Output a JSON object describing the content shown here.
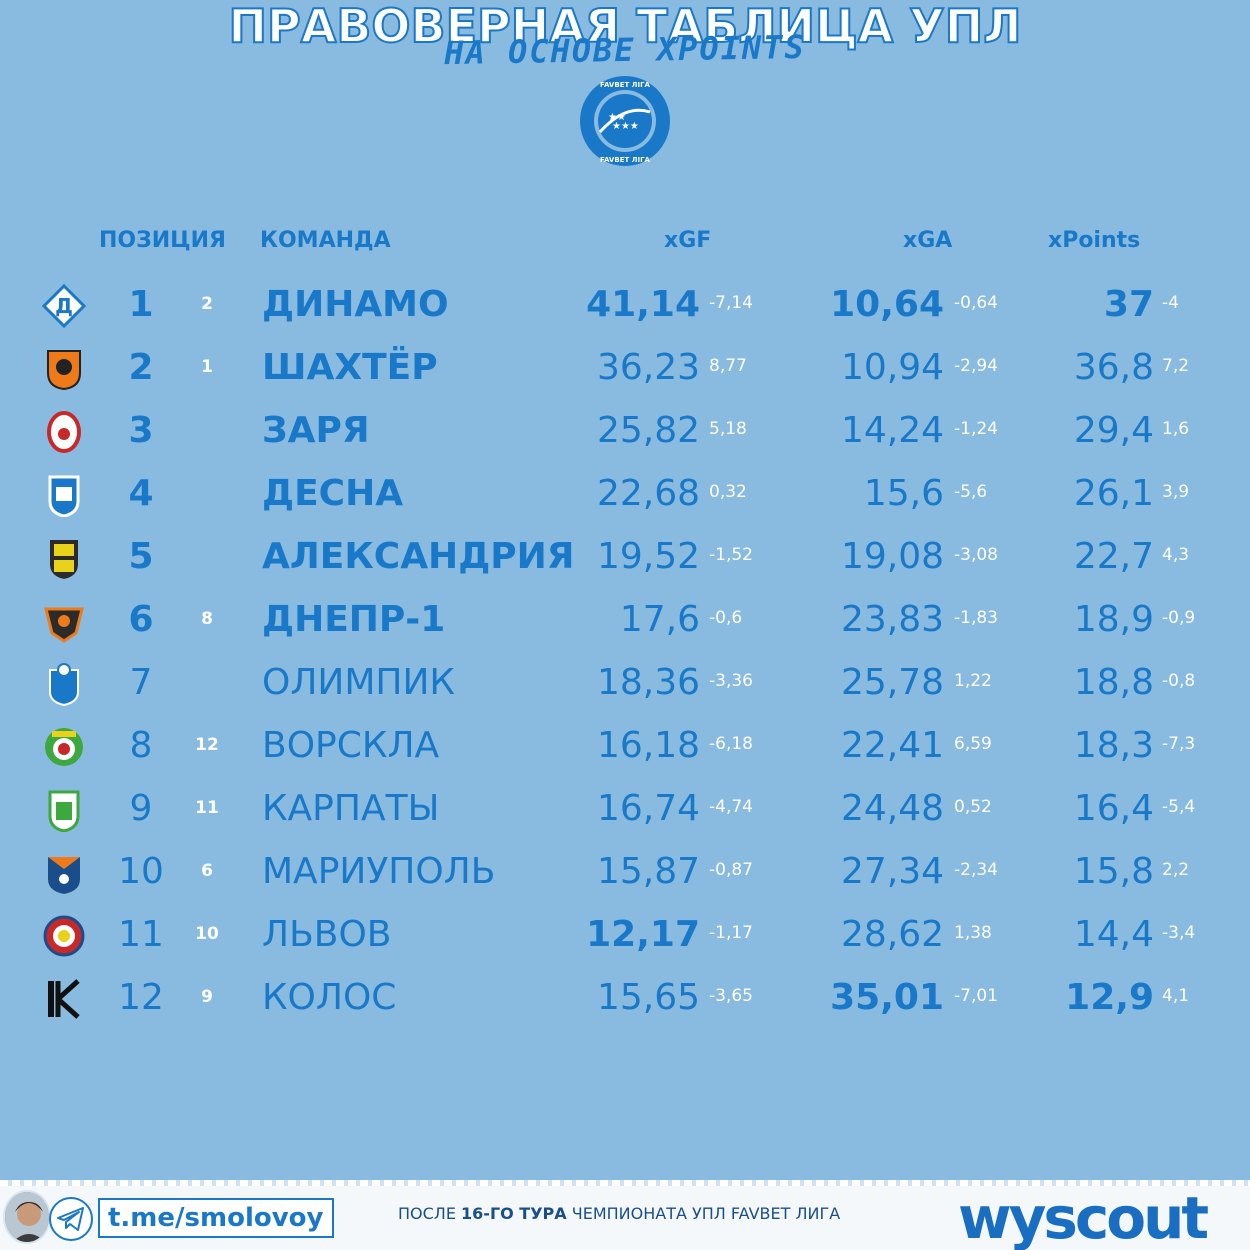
{
  "header": {
    "title": "ПРАВОВЕРНАЯ ТАБЛИЦА УПЛ",
    "subtitle": "НА ОСНОВЕ XPOINTS",
    "logo_text": "FAVBET ЛІГА"
  },
  "columns": {
    "position": "ПОЗИЦИЯ",
    "team": "КОМАНДА",
    "xgf": "xGF",
    "xga": "xGA",
    "xpoints": "xPoints"
  },
  "colors": {
    "background": "#88bbdf",
    "accent": "#1a78c8",
    "delta": "#ffffff"
  },
  "rows": [
    {
      "pos": "1",
      "prev": "2",
      "team": "ДИНАМО",
      "xgf": "41,14",
      "xgf_d": "-7,14",
      "xga": "10,64",
      "xga_d": "-0,64",
      "xp": "37",
      "xp_d": "-4",
      "badge": "dynamo-badge-icon"
    },
    {
      "pos": "2",
      "prev": "1",
      "team": "ШАХТЁР",
      "xgf": "36,23",
      "xgf_d": "8,77",
      "xga": "10,94",
      "xga_d": "-2,94",
      "xp": "36,8",
      "xp_d": "7,2",
      "badge": "shakhtar-badge-icon"
    },
    {
      "pos": "3",
      "prev": "",
      "team": "ЗАРЯ",
      "xgf": "25,82",
      "xgf_d": "5,18",
      "xga": "14,24",
      "xga_d": "-1,24",
      "xp": "29,4",
      "xp_d": "1,6",
      "badge": "zorya-badge-icon"
    },
    {
      "pos": "4",
      "prev": "",
      "team": "ДЕСНА",
      "xgf": "22,68",
      "xgf_d": "0,32",
      "xga": "15,6",
      "xga_d": "-5,6",
      "xp": "26,1",
      "xp_d": "3,9",
      "badge": "desna-badge-icon"
    },
    {
      "pos": "5",
      "prev": "",
      "team": "АЛЕКСАНДРИЯ",
      "xgf": "19,52",
      "xgf_d": "-1,52",
      "xga": "19,08",
      "xga_d": "-3,08",
      "xp": "22,7",
      "xp_d": "4,3",
      "badge": "oleksandriya-badge-icon"
    },
    {
      "pos": "6",
      "prev": "8",
      "team": "ДНЕПР-1",
      "xgf": "17,6",
      "xgf_d": "-0,6",
      "xga": "23,83",
      "xga_d": "-1,83",
      "xp": "18,9",
      "xp_d": "-0,9",
      "badge": "dnipro1-badge-icon"
    },
    {
      "pos": "7",
      "prev": "",
      "team": "ОЛИМПИК",
      "xgf": "18,36",
      "xgf_d": "-3,36",
      "xga": "25,78",
      "xga_d": "1,22",
      "xp": "18,8",
      "xp_d": "-0,8",
      "badge": "olimpik-badge-icon"
    },
    {
      "pos": "8",
      "prev": "12",
      "team": "ВОРСКЛА",
      "xgf": "16,18",
      "xgf_d": "-6,18",
      "xga": "22,41",
      "xga_d": "6,59",
      "xp": "18,3",
      "xp_d": "-7,3",
      "badge": "vorskla-badge-icon"
    },
    {
      "pos": "9",
      "prev": "11",
      "team": "КАРПАТЫ",
      "xgf": "16,74",
      "xgf_d": "-4,74",
      "xga": "24,48",
      "xga_d": "0,52",
      "xp": "16,4",
      "xp_d": "-5,4",
      "badge": "karpaty-badge-icon"
    },
    {
      "pos": "10",
      "prev": "6",
      "team": "МАРИУПОЛЬ",
      "xgf": "15,87",
      "xgf_d": "-0,87",
      "xga": "27,34",
      "xga_d": "-2,34",
      "xp": "15,8",
      "xp_d": "2,2",
      "badge": "mariupol-badge-icon"
    },
    {
      "pos": "11",
      "prev": "10",
      "team": "ЛЬВОВ",
      "xgf": "12,17",
      "xgf_d": "-1,17",
      "xga": "28,62",
      "xga_d": "1,38",
      "xp": "14,4",
      "xp_d": "-3,4",
      "badge": "lviv-badge-icon"
    },
    {
      "pos": "12",
      "prev": "9",
      "team": "КОЛОС",
      "xgf": "15,65",
      "xgf_d": "-3,65",
      "xga": "35,01",
      "xga_d": "-7,01",
      "xp": "12,9",
      "xp_d": "4,1",
      "badge": "kolos-badge-icon"
    }
  ],
  "footer": {
    "telegram": "t.me/smolovoy",
    "note_prefix": "ПОСЛЕ ",
    "note_bold": "16-ГО ТУРА",
    "note_suffix": " ЧЕМПИОНАТА УПЛ FAVBET ЛИГА",
    "brand": "wyscout"
  }
}
